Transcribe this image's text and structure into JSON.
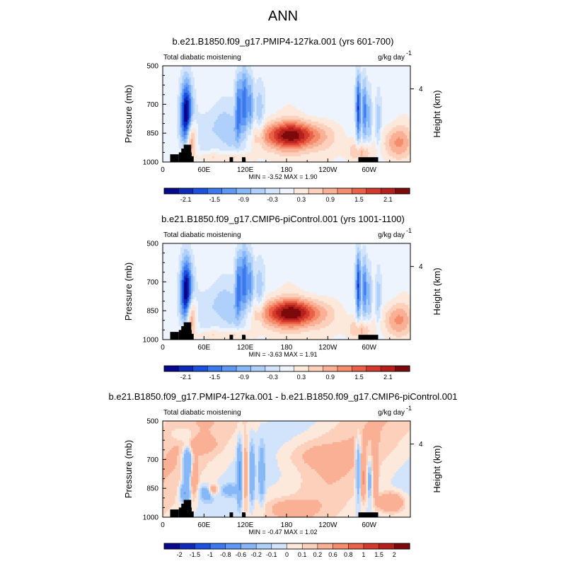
{
  "page_title": "ANN",
  "colors": {
    "ramp": [
      "#08088c",
      "#0e2ab8",
      "#1c50de",
      "#3c78ee",
      "#5e98f4",
      "#86b8f8",
      "#aed0fa",
      "#d2e4fb",
      "#eef4fd",
      "#fde8dc",
      "#fcd0ba",
      "#f9b094",
      "#f58c6c",
      "#ea6148",
      "#d23a2c",
      "#b5201c",
      "#7d0a0a"
    ],
    "land": "#000000"
  },
  "chart_data": [
    {
      "type": "heatmap",
      "title": "b.e21.B1850.f09_g17.PMIP4-127ka.001 (yrs 601-700)",
      "left_label": "Total diabatic moistening",
      "right_label": "g/kg day",
      "unit_exp": "-1",
      "ylabel": "Pressure (mb)",
      "ylabel_right": "Height (km)",
      "yticks": [
        "500",
        "700",
        "850",
        "1000"
      ],
      "yticks_right": [
        "4"
      ],
      "xticks": [
        "0",
        "60E",
        "120E",
        "180",
        "120W",
        "60W"
      ],
      "minmax": "MIN = -3.52  MAX =  1.90",
      "colorbar_labels": [
        "-2.1",
        "-1.5",
        "-0.9",
        "-0.3",
        "0.3",
        "0.9",
        "1.5",
        "2.1"
      ],
      "variant": "abs"
    },
    {
      "type": "heatmap",
      "title": "b.e21.B1850.f09_g17.CMIP6-piControl.001 (yrs 1001-1100)",
      "left_label": "Total diabatic moistening",
      "right_label": "g/kg day",
      "unit_exp": "-1",
      "ylabel": "Pressure (mb)",
      "ylabel_right": "Height (km)",
      "yticks": [
        "500",
        "700",
        "850",
        "1000"
      ],
      "yticks_right": [
        "4"
      ],
      "xticks": [
        "0",
        "60E",
        "120E",
        "180",
        "120W",
        "60W"
      ],
      "minmax": "MIN = -3.63  MAX =  1.91",
      "colorbar_labels": [
        "-2.1",
        "-1.5",
        "-0.9",
        "-0.3",
        "0.3",
        "0.9",
        "1.5",
        "2.1"
      ],
      "variant": "abs"
    },
    {
      "type": "heatmap",
      "title": "b.e21.B1850.f09_g17.PMIP4-127ka.001 - b.e21.B1850.f09_g17.CMIP6-piControl.001",
      "left_label": "Total diabatic moistening",
      "right_label": "g/kg day",
      "unit_exp": "-1",
      "ylabel": "Pressure (mb)",
      "ylabel_right": "Height (km)",
      "yticks": [
        "500",
        "700",
        "850",
        "1000"
      ],
      "yticks_right": [
        "4"
      ],
      "xticks": [
        "0",
        "60E",
        "120E",
        "180",
        "120W",
        "60W"
      ],
      "minmax": "MIN = -0.47  MAX =  1.02",
      "colorbar_labels": [
        "-2",
        "-1.5",
        "-1",
        "-0.8",
        "-0.6",
        "-0.2",
        "-0.1",
        "0",
        "0.1",
        "0.2",
        "0.6",
        "0.8",
        "1",
        "1.5",
        "2"
      ],
      "variant": "diff"
    }
  ]
}
